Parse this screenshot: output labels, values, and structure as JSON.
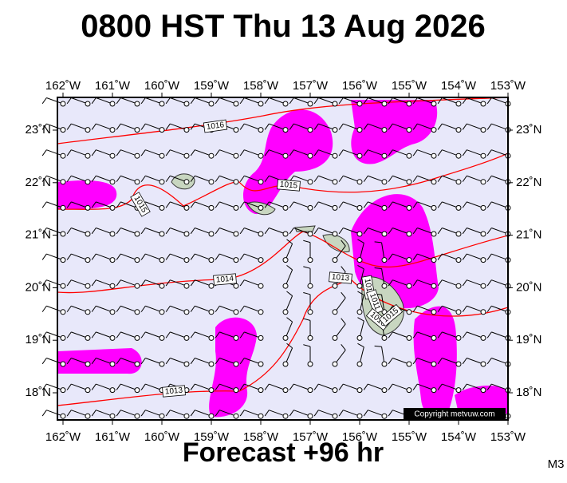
{
  "header": {
    "title": "0800 HST Thu 13 Aug 2026"
  },
  "map": {
    "lon_labels": [
      "162˚W",
      "161˚W",
      "160˚W",
      "159˚W",
      "158˚W",
      "157˚W",
      "156˚W",
      "155˚W",
      "154˚W",
      "153˚W"
    ],
    "lat_labels": [
      "23˚N",
      "22˚N",
      "21˚N",
      "20˚N",
      "19˚N",
      "18˚N"
    ],
    "isobar_labels": [
      "1016",
      "1015",
      "1015",
      "1014",
      "1013",
      "1013",
      "1012",
      "1011",
      "1016",
      "1015"
    ],
    "copyright": "Copyright metvuw.com"
  },
  "footer": {
    "forecast": "Forecast +96 hr",
    "model": "M3"
  }
}
